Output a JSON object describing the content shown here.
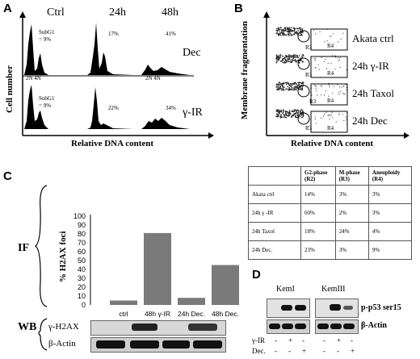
{
  "panelA": {
    "letter": "A",
    "col_headers": [
      "Ctrl",
      "24h",
      "48h"
    ],
    "row_labels": [
      "Dec",
      "γ-IR"
    ],
    "subg1_label": "SubG1",
    "subg1_value": "= 9%",
    "row1_pcts": [
      "17%",
      "41%"
    ],
    "row2_pcts": [
      "22%",
      "34%"
    ],
    "ploidy": "2N 4N",
    "ylabel": "Cell number",
    "xlabel": "Relative DNA content"
  },
  "panelB": {
    "letter": "B",
    "row_labels": [
      "Akata ctrl",
      "24h γ-IR",
      "24h Taxol",
      "24h Dec"
    ],
    "gate_r4": "R4",
    "gate_r3": "R3",
    "ylabel": "Membrane fragmentation",
    "xlabel": "Relative DNA content"
  },
  "table": {
    "headers": [
      "",
      "G2-phase (R2)",
      "M-phase (R3)",
      "Aneuploidy (R4)"
    ],
    "rows": [
      [
        "Akata ctrl",
        "14%",
        "3%",
        "3%"
      ],
      [
        "24h γ -IR",
        "60%",
        "2%",
        "3%"
      ],
      [
        "24h Taxol",
        "18%",
        "24%",
        "4%"
      ],
      [
        "24h Dec.",
        "23%",
        "3%",
        "9%"
      ]
    ]
  },
  "panelC": {
    "letter": "C",
    "if_label": "IF",
    "wb_label": "WB",
    "wb_rows": [
      "γ-H2AX",
      "β-Actin"
    ],
    "ylabel": "% H2AX foci"
  },
  "chart_data": {
    "type": "bar",
    "categories": [
      "ctrl",
      "48h γ-IR",
      "24h Dec.",
      "48h Dec."
    ],
    "values": [
      5,
      81,
      8,
      45
    ],
    "ylim": [
      0,
      100
    ],
    "yticks": [
      0,
      10,
      20,
      30,
      40,
      50,
      60,
      70,
      80,
      90,
      100
    ],
    "bar_color": "#7a7a7a",
    "ylabel": "% H2AX foci"
  },
  "panelD": {
    "letter": "D",
    "cell_lines": [
      "KemI",
      "KemIII"
    ],
    "blot_labels": [
      "p-p53 ser15",
      "β-Actin"
    ],
    "treat_labels": [
      "γ-IR",
      "Dec."
    ],
    "ir_signs": [
      "-",
      "+",
      "-",
      "-",
      "+",
      "-"
    ],
    "dec_signs": [
      "-",
      "-",
      "+",
      "-",
      "-",
      "+"
    ]
  }
}
